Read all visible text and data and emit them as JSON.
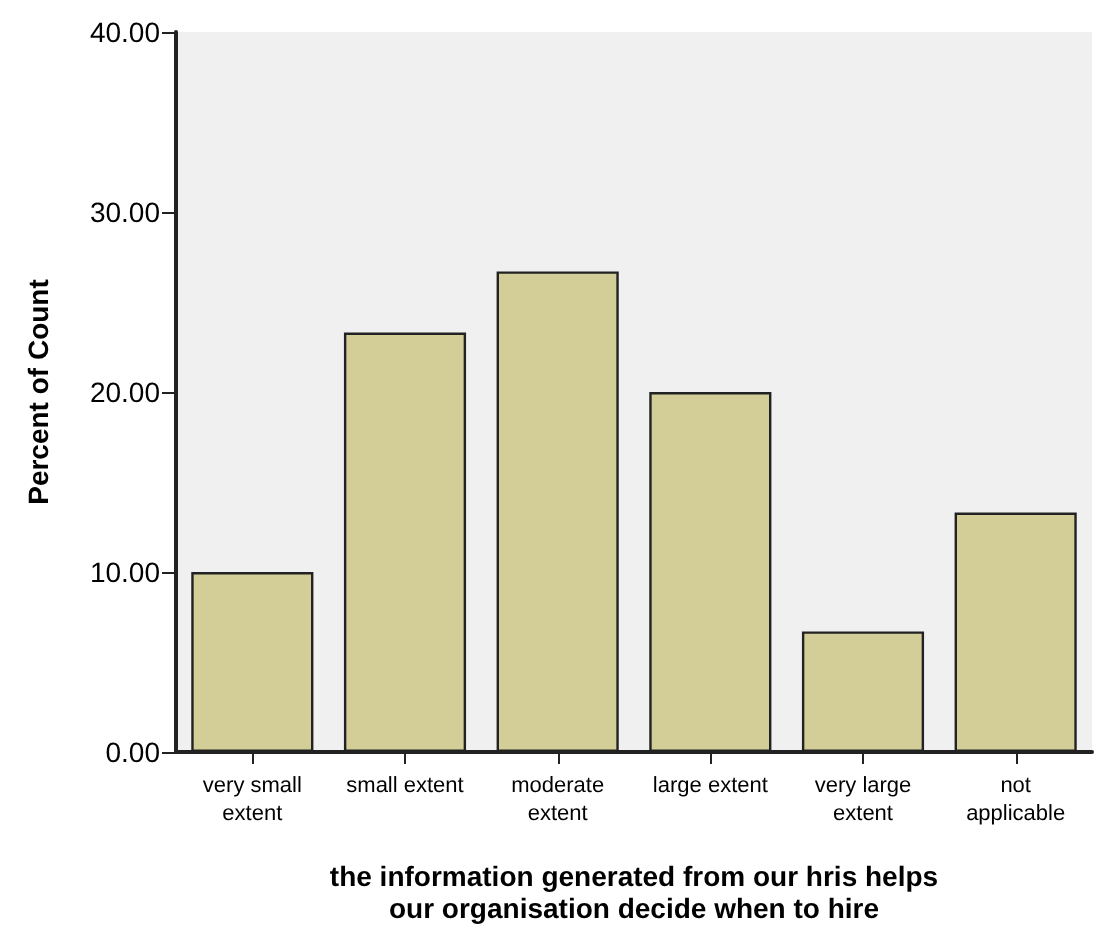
{
  "chart_data": {
    "type": "bar",
    "xlabel": "the information generated from our hris helps our organisation decide when to hire",
    "ylabel": "Percent of Count",
    "categories": [
      "very small extent",
      "small extent",
      "moderate extent",
      "large extent",
      "very large extent",
      "not applicable"
    ],
    "values": [
      10,
      23.3,
      26.7,
      20,
      6.7,
      13.3
    ],
    "color": "#d3ce97",
    "ylim": [
      0,
      40
    ],
    "yticks": [
      {
        "value": 0,
        "label": "0.00"
      },
      {
        "value": 10,
        "label": "10.00"
      },
      {
        "value": 20,
        "label": "20.00"
      },
      {
        "value": 30,
        "label": "30.00"
      },
      {
        "value": 40,
        "label": "40.00"
      }
    ],
    "grid": false
  }
}
